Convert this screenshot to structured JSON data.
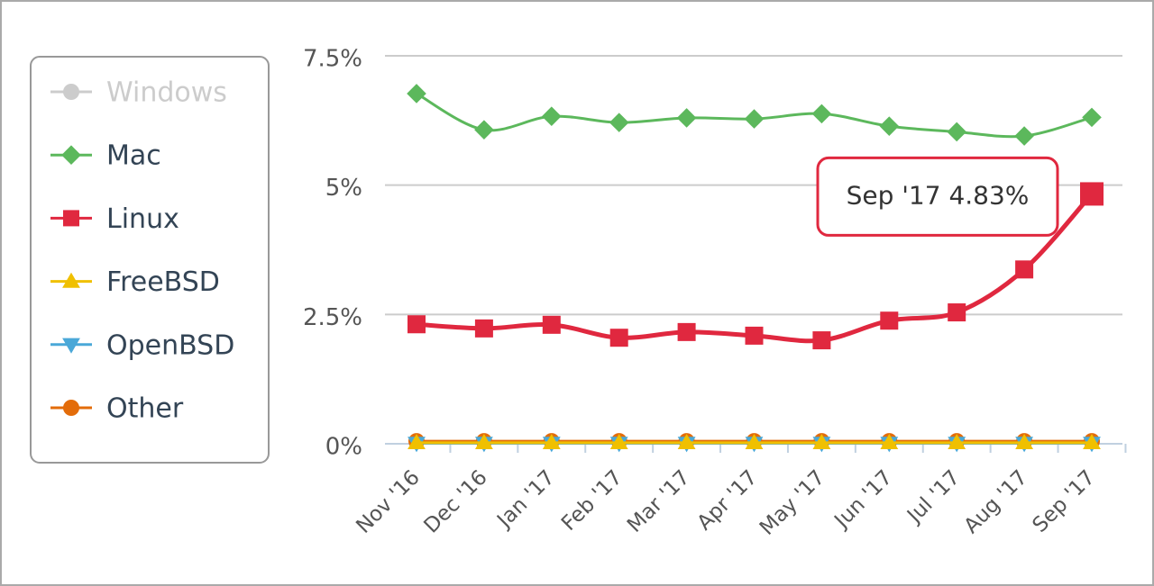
{
  "chart_data": {
    "type": "line",
    "categories": [
      "Nov '16",
      "Dec '16",
      "Jan '17",
      "Feb '17",
      "Mar '17",
      "Apr '17",
      "May '17",
      "Jun '17",
      "Jul '17",
      "Aug '17",
      "Sep '17"
    ],
    "series": [
      {
        "name": "Windows",
        "color": "#cccccc",
        "marker": "circle",
        "hidden": true,
        "values": [
          null,
          null,
          null,
          null,
          null,
          null,
          null,
          null,
          null,
          null,
          null
        ]
      },
      {
        "name": "Mac",
        "color": "#5cb85c",
        "marker": "diamond",
        "values": [
          6.77,
          6.07,
          6.33,
          6.21,
          6.3,
          6.28,
          6.38,
          6.14,
          6.03,
          5.95,
          6.31
        ]
      },
      {
        "name": "Linux",
        "color": "#e0283f",
        "marker": "square",
        "values": [
          2.31,
          2.23,
          2.3,
          2.05,
          2.16,
          2.09,
          2.0,
          2.38,
          2.54,
          3.37,
          4.83
        ]
      },
      {
        "name": "FreeBSD",
        "color": "#f0c000",
        "marker": "triangle",
        "values": [
          0.02,
          0.02,
          0.02,
          0.02,
          0.02,
          0.02,
          0.02,
          0.02,
          0.02,
          0.02,
          0.02
        ]
      },
      {
        "name": "OpenBSD",
        "color": "#4aa8d8",
        "marker": "triangle-down",
        "values": [
          0.01,
          0.01,
          0.01,
          0.01,
          0.01,
          0.01,
          0.01,
          0.01,
          0.01,
          0.01,
          0.01
        ]
      },
      {
        "name": "Other",
        "color": "#e36c0a",
        "marker": "circle",
        "values": [
          0.05,
          0.05,
          0.05,
          0.05,
          0.05,
          0.05,
          0.05,
          0.05,
          0.05,
          0.05,
          0.05
        ]
      }
    ],
    "ylim": [
      0,
      7.5
    ],
    "yticks": [
      {
        "value": 0,
        "label": "0%"
      },
      {
        "value": 2.5,
        "label": "2.5%"
      },
      {
        "value": 5,
        "label": "5%"
      },
      {
        "value": 7.5,
        "label": "7.5%"
      }
    ],
    "grid": true,
    "legend": "left",
    "tooltip": {
      "series": 2,
      "index": 10,
      "label": "Sep '17 4.83%"
    }
  }
}
